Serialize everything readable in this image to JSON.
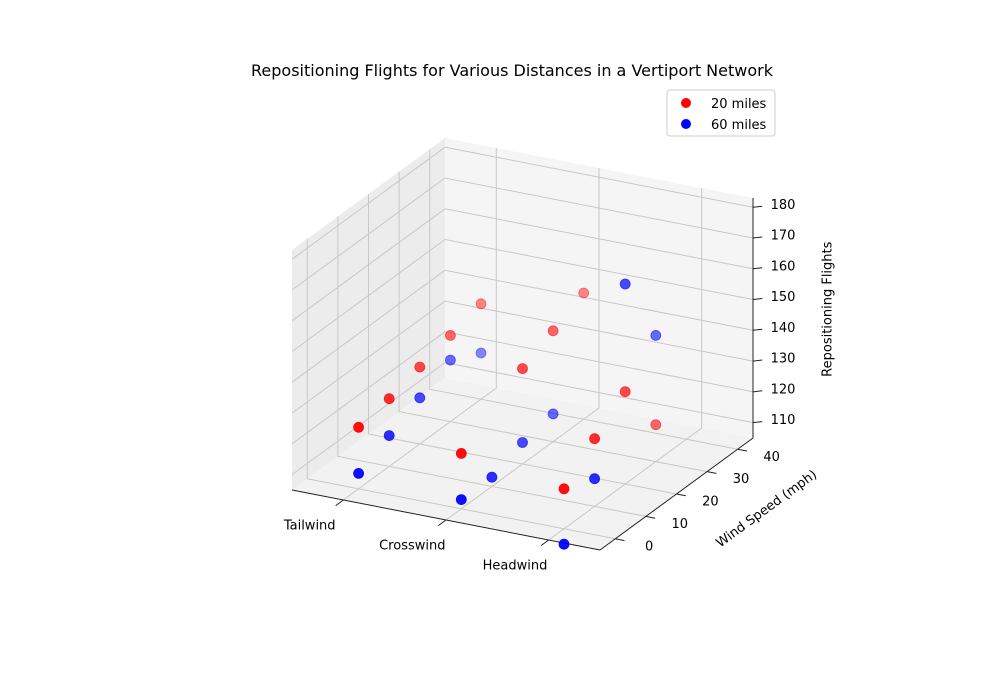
{
  "chart_data": {
    "type": "scatter",
    "projection": "3d",
    "title": "Repositioning Flights for Various Distances in a Vertiport Network",
    "xlabel": "",
    "ylabel": "Wind Speed (mph)",
    "zlabel": "Repositioning Flights",
    "x_categories": [
      "Tailwind",
      "Crosswind",
      "Headwind"
    ],
    "y_ticks": [
      0,
      10,
      20,
      30,
      40
    ],
    "z_ticks": [
      110,
      120,
      130,
      140,
      150,
      160,
      170,
      180
    ],
    "ylim": [
      -5,
      45
    ],
    "zlim": [
      105,
      183
    ],
    "grid": true,
    "legend_position": "top-right",
    "colors": {
      "20 miles": "#ff0000",
      "60 miles": "#0000ff"
    },
    "series": [
      {
        "name": "20 miles",
        "color": "#ff0000",
        "points": [
          {
            "x": "Tailwind",
            "y": 0,
            "z": 125
          },
          {
            "x": "Tailwind",
            "y": 10,
            "z": 127
          },
          {
            "x": "Tailwind",
            "y": 20,
            "z": 130
          },
          {
            "x": "Tailwind",
            "y": 30,
            "z": 133
          },
          {
            "x": "Tailwind",
            "y": 40,
            "z": 136
          },
          {
            "x": "Crosswind",
            "y": 0,
            "z": 123
          },
          {
            "x": "Crosswind",
            "y": 20,
            "z": 136
          },
          {
            "x": "Crosswind",
            "y": 30,
            "z": 141
          },
          {
            "x": "Crosswind",
            "y": 40,
            "z": 146
          },
          {
            "x": "Headwind",
            "y": 0,
            "z": 118
          },
          {
            "x": "Headwind",
            "y": 10,
            "z": 127
          },
          {
            "x": "Headwind",
            "y": 20,
            "z": 135
          },
          {
            "x": "Headwind",
            "y": 30,
            "z": 117
          }
        ]
      },
      {
        "name": "60 miles",
        "color": "#0000ff",
        "points": [
          {
            "x": "Tailwind",
            "y": 0,
            "z": 110
          },
          {
            "x": "Tailwind",
            "y": 10,
            "z": 115
          },
          {
            "x": "Tailwind",
            "y": 20,
            "z": 120
          },
          {
            "x": "Tailwind",
            "y": 30,
            "z": 125
          },
          {
            "x": "Tailwind",
            "y": 40,
            "z": 120
          },
          {
            "x": "Crosswind",
            "y": 0,
            "z": 108
          },
          {
            "x": "Crosswind",
            "y": 10,
            "z": 108
          },
          {
            "x": "Crosswind",
            "y": 20,
            "z": 112
          },
          {
            "x": "Crosswind",
            "y": 30,
            "z": 114
          },
          {
            "x": "Headwind",
            "y": 0,
            "z": 100
          },
          {
            "x": "Headwind",
            "y": 10,
            "z": 114
          },
          {
            "x": "Headwind",
            "y": 20,
            "z": 170
          },
          {
            "x": "Headwind",
            "y": 30,
            "z": 146
          }
        ]
      }
    ]
  }
}
